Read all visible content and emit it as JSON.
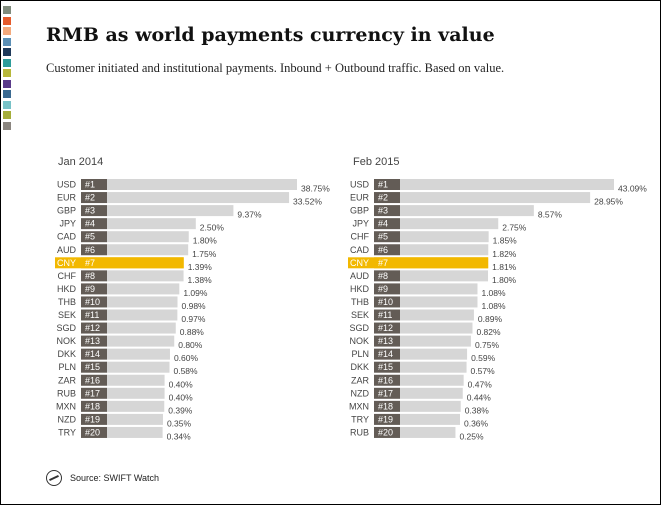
{
  "title": "RMB as world payments currency in value",
  "subtitle": "Customer initiated  and institutional  payments. Inbound + Outbound traffic. Based on value.",
  "footer": {
    "source": "Source: SWIFT Watch",
    "logo_icon": "swift-logo-icon"
  },
  "colors": {
    "bar": "#d6d6d6",
    "rank_box": "#635c56",
    "highlight": "#f2b800",
    "text": "#444444"
  },
  "stripes": [
    "#7f8b7c",
    "#e55a2b",
    "#f3a97c",
    "#5b8fb5",
    "#1f3a5a",
    "#2d9c9a",
    "#b7b83a",
    "#5a3b8a",
    "#3b6a91",
    "#78c2c7",
    "#a5ae3a",
    "#8b8680"
  ],
  "chart_data": [
    {
      "type": "bar",
      "title": "Jan 2014",
      "categories": [
        "USD",
        "EUR",
        "GBP",
        "JPY",
        "CAD",
        "AUD",
        "CNY",
        "CHF",
        "HKD",
        "THB",
        "SEK",
        "SGD",
        "NOK",
        "DKK",
        "PLN",
        "ZAR",
        "RUB",
        "MXN",
        "NZD",
        "TRY"
      ],
      "ranks": [
        "#1",
        "#2",
        "#3",
        "#4",
        "#5",
        "#6",
        "#7",
        "#8",
        "#9",
        "#10",
        "#11",
        "#12",
        "#13",
        "#14",
        "#15",
        "#16",
        "#17",
        "#18",
        "#19",
        "#20"
      ],
      "labels": [
        "38.75%",
        "33.52%",
        "9.37%",
        "2.50%",
        "1.80%",
        "1.75%",
        "1.39%",
        "1.38%",
        "1.09%",
        "0.98%",
        "0.97%",
        "0.88%",
        "0.80%",
        "0.60%",
        "0.58%",
        "0.40%",
        "0.40%",
        "0.39%",
        "0.35%",
        "0.34%"
      ],
      "values": [
        38.75,
        33.52,
        9.37,
        2.5,
        1.8,
        1.75,
        1.39,
        1.38,
        1.09,
        0.98,
        0.97,
        0.88,
        0.8,
        0.6,
        0.58,
        0.4,
        0.4,
        0.39,
        0.35,
        0.34
      ],
      "highlight": "CNY"
    },
    {
      "type": "bar",
      "title": "Feb 2015",
      "categories": [
        "USD",
        "EUR",
        "GBP",
        "JPY",
        "CHF",
        "CAD",
        "CNY",
        "AUD",
        "HKD",
        "THB",
        "SEK",
        "SGD",
        "NOK",
        "PLN",
        "DKK",
        "ZAR",
        "NZD",
        "MXN",
        "TRY",
        "RUB"
      ],
      "ranks": [
        "#1",
        "#2",
        "#3",
        "#4",
        "#5",
        "#6",
        "#7",
        "#8",
        "#9",
        "#10",
        "#11",
        "#12",
        "#13",
        "#14",
        "#15",
        "#16",
        "#17",
        "#18",
        "#19",
        "#20"
      ],
      "labels": [
        "43.09%",
        "28.95%",
        "8.57%",
        "2.75%",
        "1.85%",
        "1.82%",
        "1.81%",
        "1.80%",
        "1.08%",
        "1.08%",
        "0.89%",
        "0.82%",
        "0.75%",
        "0.59%",
        "0.57%",
        "0.47%",
        "0.44%",
        "0.38%",
        "0.36%",
        "0.25%"
      ],
      "values": [
        43.09,
        28.95,
        8.57,
        2.75,
        1.85,
        1.82,
        1.81,
        1.8,
        1.08,
        1.08,
        0.89,
        0.82,
        0.75,
        0.59,
        0.57,
        0.47,
        0.44,
        0.38,
        0.36,
        0.25
      ],
      "highlight": "CNY"
    }
  ]
}
